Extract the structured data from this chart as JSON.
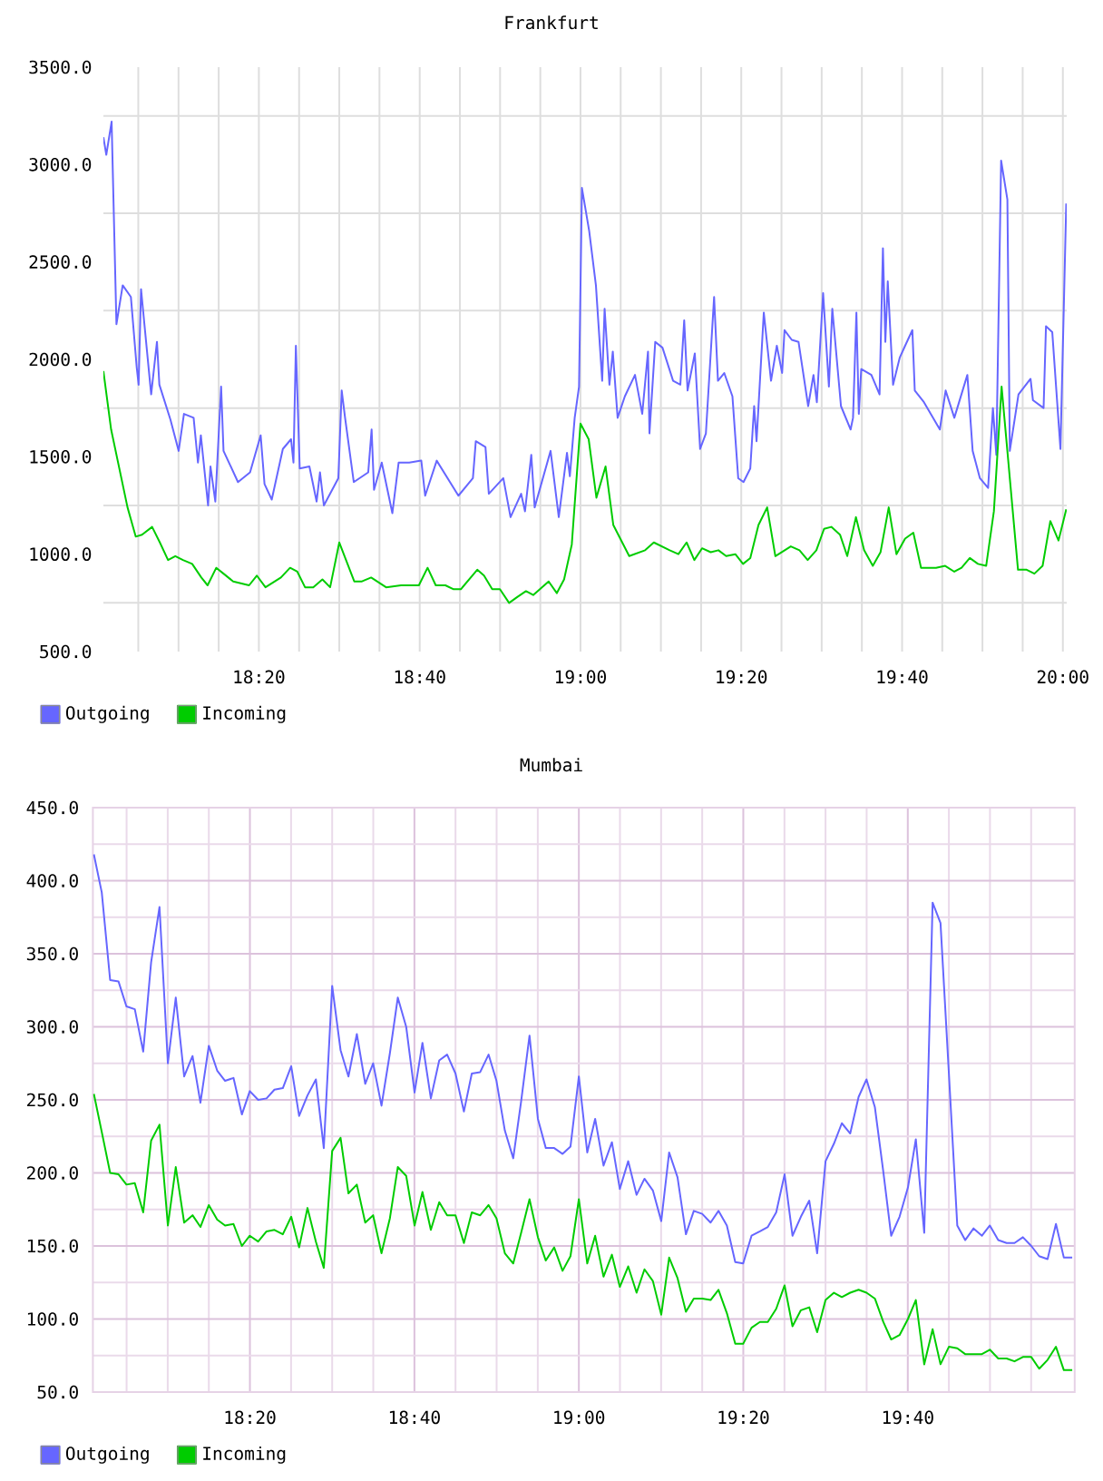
{
  "chart_data": [
    {
      "type": "line",
      "title": "Frankfurt",
      "xlim": [
        18.011,
        20.008
      ],
      "ylim": [
        500,
        3500
      ],
      "xticks": [
        {
          "value": 18.0833,
          "label": null
        },
        {
          "value": 18.1667,
          "label": null
        },
        {
          "value": 18.25,
          "label": null
        },
        {
          "value": 18.3333,
          "label": "18:20"
        },
        {
          "value": 18.4167,
          "label": null
        },
        {
          "value": 18.5,
          "label": null
        },
        {
          "value": 18.5833,
          "label": null
        },
        {
          "value": 18.6667,
          "label": "18:40"
        },
        {
          "value": 18.75,
          "label": null
        },
        {
          "value": 18.8333,
          "label": null
        },
        {
          "value": 18.9167,
          "label": null
        },
        {
          "value": 19.0,
          "label": "19:00"
        },
        {
          "value": 19.0833,
          "label": null
        },
        {
          "value": 19.1667,
          "label": null
        },
        {
          "value": 19.25,
          "label": null
        },
        {
          "value": 19.3333,
          "label": "19:20"
        },
        {
          "value": 19.4167,
          "label": null
        },
        {
          "value": 19.5,
          "label": null
        },
        {
          "value": 19.5833,
          "label": null
        },
        {
          "value": 19.6667,
          "label": "19:40"
        },
        {
          "value": 19.75,
          "label": null
        },
        {
          "value": 19.8333,
          "label": null
        },
        {
          "value": 19.9167,
          "label": null
        },
        {
          "value": 20.0,
          "label": "20:00"
        }
      ],
      "yticks": [
        {
          "value": 500,
          "label": "500.0"
        },
        {
          "value": 750,
          "label": null
        },
        {
          "value": 1000,
          "label": "1000.0"
        },
        {
          "value": 1250,
          "label": null
        },
        {
          "value": 1500,
          "label": "1500.0"
        },
        {
          "value": 1750,
          "label": null
        },
        {
          "value": 2000,
          "label": "2000.0"
        },
        {
          "value": 2250,
          "label": null
        },
        {
          "value": 2500,
          "label": "2500.0"
        },
        {
          "value": 2750,
          "label": null
        },
        {
          "value": 3000,
          "label": "3000.0"
        },
        {
          "value": 3250,
          "label": null
        },
        {
          "value": 3500,
          "label": "3500.0"
        }
      ],
      "grid": true,
      "legend": "bottom left",
      "series": [
        {
          "name": "Outgoing",
          "color": "#6666ff",
          "x": [
            18.011,
            18.017,
            18.028,
            18.038,
            18.051,
            18.068,
            18.08,
            18.084,
            18.089,
            18.11,
            18.122,
            18.127,
            18.15,
            18.167,
            18.178,
            18.198,
            18.207,
            18.213,
            18.228,
            18.233,
            18.243,
            18.255,
            18.26,
            18.29,
            18.315,
            18.337,
            18.345,
            18.36,
            18.383,
            18.4,
            18.405,
            18.41,
            18.418,
            18.438,
            18.453,
            18.46,
            18.468,
            18.498,
            18.505,
            18.512,
            18.53,
            18.56,
            18.567,
            18.572,
            18.588,
            18.61,
            18.623,
            18.645,
            18.67,
            18.678,
            18.702,
            18.732,
            18.747,
            18.777,
            18.783,
            18.803,
            18.81,
            18.84,
            18.855,
            18.877,
            18.885,
            18.898,
            18.905,
            18.938,
            18.955,
            18.972,
            18.978,
            18.988,
            18.997,
            19.003,
            19.018,
            19.032,
            19.045,
            19.05,
            19.06,
            19.067,
            19.077,
            19.092,
            19.113,
            19.128,
            19.14,
            19.143,
            19.155,
            19.17,
            19.192,
            19.207,
            19.215,
            19.222,
            19.237,
            19.248,
            19.26,
            19.277,
            19.285,
            19.298,
            19.315,
            19.327,
            19.338,
            19.352,
            19.36,
            19.365,
            19.38,
            19.395,
            19.407,
            19.418,
            19.423,
            19.438,
            19.452,
            19.472,
            19.483,
            19.49,
            19.503,
            19.515,
            19.522,
            19.54,
            19.56,
            19.565,
            19.572,
            19.577,
            19.582,
            19.603,
            19.62,
            19.627,
            19.632,
            19.637,
            19.648,
            19.662,
            19.673,
            19.688,
            19.693,
            19.712,
            19.745,
            19.757,
            19.775,
            19.802,
            19.813,
            19.828,
            19.845,
            19.855,
            19.862,
            19.872,
            19.885,
            19.89,
            19.908,
            19.933,
            19.938,
            19.96,
            19.965,
            19.978,
            19.995,
            20.007
          ],
          "values": [
            3140,
            3050,
            3220,
            2180,
            2380,
            2320,
            1960,
            1870,
            2360,
            1820,
            2090,
            1870,
            1690,
            1530,
            1720,
            1700,
            1470,
            1610,
            1250,
            1450,
            1270,
            1860,
            1530,
            1370,
            1420,
            1610,
            1360,
            1280,
            1540,
            1590,
            1470,
            2070,
            1440,
            1450,
            1270,
            1420,
            1250,
            1390,
            1840,
            1700,
            1370,
            1420,
            1640,
            1330,
            1470,
            1210,
            1470,
            1470,
            1480,
            1300,
            1480,
            1360,
            1300,
            1390,
            1580,
            1550,
            1310,
            1390,
            1190,
            1310,
            1220,
            1510,
            1240,
            1530,
            1190,
            1520,
            1400,
            1700,
            1860,
            2880,
            2660,
            2380,
            1890,
            2260,
            1870,
            2040,
            1700,
            1810,
            1920,
            1720,
            2040,
            1620,
            2090,
            2060,
            1890,
            1870,
            2200,
            1840,
            2030,
            1540,
            1620,
            2320,
            1890,
            1930,
            1810,
            1390,
            1370,
            1440,
            1760,
            1580,
            2240,
            1890,
            2070,
            1930,
            2150,
            2100,
            2090,
            1760,
            1920,
            1780,
            2340,
            1860,
            2260,
            1760,
            1640,
            1700,
            2240,
            1720,
            1950,
            1920,
            1820,
            2570,
            2090,
            2400,
            1870,
            2010,
            2070,
            2150,
            1840,
            1780,
            1640,
            1840,
            1700,
            1920,
            1530,
            1390,
            1340,
            1750,
            1510,
            3020,
            2820,
            1530,
            1820,
            1900,
            1790,
            1750,
            2170,
            2140,
            1540,
            2800
          ]
        },
        {
          "name": "Incoming",
          "color": "#00cc00",
          "x": [
            18.011,
            18.027,
            18.061,
            18.078,
            18.091,
            18.112,
            18.128,
            18.145,
            18.16,
            18.176,
            18.195,
            18.214,
            18.227,
            18.245,
            18.26,
            18.28,
            18.313,
            18.329,
            18.347,
            18.379,
            18.398,
            18.413,
            18.429,
            18.446,
            18.465,
            18.481,
            18.5,
            18.531,
            18.547,
            18.566,
            18.597,
            18.628,
            18.665,
            18.683,
            18.7,
            18.72,
            18.737,
            18.752,
            18.786,
            18.8,
            18.817,
            18.833,
            18.852,
            18.869,
            18.887,
            18.902,
            18.934,
            18.951,
            18.966,
            18.982,
            19.0,
            19.017,
            19.033,
            19.052,
            19.068,
            19.101,
            19.134,
            19.152,
            19.185,
            19.203,
            19.22,
            19.236,
            19.252,
            19.27,
            19.286,
            19.302,
            19.321,
            19.337,
            19.352,
            19.369,
            19.387,
            19.404,
            19.436,
            19.454,
            19.471,
            19.489,
            19.505,
            19.52,
            19.538,
            19.553,
            19.571,
            19.588,
            19.606,
            19.622,
            19.639,
            19.655,
            19.673,
            19.69,
            19.706,
            19.737,
            19.756,
            19.775,
            19.79,
            19.807,
            19.824,
            19.841,
            19.857,
            19.873,
            19.907,
            19.925,
            19.941,
            19.958,
            19.974,
            19.991,
            20.007
          ],
          "values": [
            1940,
            1640,
            1240,
            1090,
            1100,
            1140,
            1060,
            970,
            990,
            970,
            950,
            880,
            840,
            930,
            900,
            860,
            840,
            890,
            830,
            880,
            930,
            910,
            830,
            830,
            870,
            830,
            1060,
            860,
            860,
            880,
            830,
            840,
            840,
            930,
            840,
            840,
            820,
            820,
            920,
            890,
            820,
            820,
            750,
            780,
            810,
            790,
            860,
            800,
            870,
            1050,
            1670,
            1590,
            1290,
            1450,
            1150,
            990,
            1020,
            1060,
            1020,
            1000,
            1060,
            970,
            1030,
            1010,
            1020,
            990,
            1000,
            950,
            980,
            1150,
            1240,
            990,
            1040,
            1020,
            970,
            1020,
            1130,
            1140,
            1100,
            990,
            1190,
            1020,
            940,
            1010,
            1240,
            1000,
            1080,
            1110,
            930,
            930,
            940,
            910,
            930,
            980,
            950,
            940,
            1220,
            1860,
            920,
            920,
            900,
            940,
            1170,
            1070,
            1230
          ]
        }
      ]
    },
    {
      "type": "line",
      "title": "Mumbai",
      "xlim": [
        18.015,
        20.005
      ],
      "ylim": [
        50,
        450
      ],
      "xticks": [
        {
          "value": 18.0833,
          "label": null
        },
        {
          "value": 18.1667,
          "label": null
        },
        {
          "value": 18.25,
          "label": null
        },
        {
          "value": 18.3333,
          "label": "18:20"
        },
        {
          "value": 18.4167,
          "label": null
        },
        {
          "value": 18.5,
          "label": null
        },
        {
          "value": 18.5833,
          "label": null
        },
        {
          "value": 18.6667,
          "label": "18:40"
        },
        {
          "value": 18.75,
          "label": null
        },
        {
          "value": 18.8333,
          "label": null
        },
        {
          "value": 18.9167,
          "label": null
        },
        {
          "value": 19.0,
          "label": "19:00"
        },
        {
          "value": 19.0833,
          "label": null
        },
        {
          "value": 19.1667,
          "label": null
        },
        {
          "value": 19.25,
          "label": null
        },
        {
          "value": 19.3333,
          "label": "19:20"
        },
        {
          "value": 19.4167,
          "label": null
        },
        {
          "value": 19.5,
          "label": null
        },
        {
          "value": 19.5833,
          "label": null
        },
        {
          "value": 19.6667,
          "label": "19:40"
        },
        {
          "value": 19.75,
          "label": null
        },
        {
          "value": 19.8333,
          "label": null
        },
        {
          "value": 19.9167,
          "label": null
        }
      ],
      "yticks": [
        {
          "value": 50,
          "label": "50.0"
        },
        {
          "value": 75,
          "label": null
        },
        {
          "value": 100,
          "label": "100.0"
        },
        {
          "value": 125,
          "label": null
        },
        {
          "value": 150,
          "label": "150.0"
        },
        {
          "value": 175,
          "label": null
        },
        {
          "value": 200,
          "label": "200.0"
        },
        {
          "value": 225,
          "label": null
        },
        {
          "value": 250,
          "label": "250.0"
        },
        {
          "value": 275,
          "label": null
        },
        {
          "value": 300,
          "label": "300.0"
        },
        {
          "value": 325,
          "label": null
        },
        {
          "value": 350,
          "label": "350.0"
        },
        {
          "value": 375,
          "label": null
        },
        {
          "value": 400,
          "label": "400.0"
        },
        {
          "value": 425,
          "label": null
        },
        {
          "value": 450,
          "label": "450.0"
        }
      ],
      "grid": true,
      "legend": "bottom left",
      "x": [
        18.017,
        18.033,
        18.05,
        18.067,
        18.083,
        18.1,
        18.117,
        18.133,
        18.15,
        18.167,
        18.183,
        18.2,
        18.217,
        18.233,
        18.25,
        18.267,
        18.283,
        18.3,
        18.317,
        18.333,
        18.35,
        18.367,
        18.383,
        18.4,
        18.417,
        18.433,
        18.45,
        18.467,
        18.483,
        18.5,
        18.517,
        18.533,
        18.55,
        18.567,
        18.583,
        18.6,
        18.617,
        18.633,
        18.65,
        18.667,
        18.683,
        18.7,
        18.717,
        18.733,
        18.75,
        18.767,
        18.783,
        18.8,
        18.817,
        18.833,
        18.85,
        18.867,
        18.883,
        18.9,
        18.917,
        18.933,
        18.95,
        18.967,
        18.983,
        19.0,
        19.017,
        19.033,
        19.05,
        19.067,
        19.083,
        19.1,
        19.117,
        19.133,
        19.15,
        19.167,
        19.183,
        19.2,
        19.217,
        19.233,
        19.25,
        19.267,
        19.283,
        19.3,
        19.317,
        19.333,
        19.35,
        19.367,
        19.383,
        19.4,
        19.417,
        19.433,
        19.45,
        19.467,
        19.483,
        19.5,
        19.517,
        19.533,
        19.55,
        19.567,
        19.583,
        19.6,
        19.617,
        19.633,
        19.65,
        19.667,
        19.683,
        19.7,
        19.717,
        19.733,
        19.75,
        19.767,
        19.783,
        19.8,
        19.817,
        19.833,
        19.85,
        19.867,
        19.883,
        19.9,
        19.917,
        19.933,
        19.95,
        19.967,
        19.983,
        20.0
      ],
      "series": [
        {
          "name": "Outgoing",
          "color": "#6666ff",
          "values": [
            418,
            392,
            332,
            331,
            314,
            312,
            283,
            344,
            382,
            275,
            320,
            266,
            280,
            248,
            287,
            270,
            263,
            265,
            240,
            256,
            250,
            251,
            257,
            258,
            273,
            239,
            253,
            264,
            217,
            328,
            284,
            266,
            295,
            261,
            275,
            246,
            282,
            320,
            300,
            255,
            289,
            251,
            277,
            281,
            268,
            242,
            268,
            269,
            281,
            263,
            229,
            210,
            249,
            294,
            237,
            217,
            217,
            213,
            218,
            266,
            214,
            237,
            205,
            221,
            189,
            208,
            185,
            196,
            188,
            167,
            214,
            197,
            158,
            174,
            172,
            166,
            174,
            164,
            139,
            138,
            157,
            160,
            163,
            173,
            199,
            157,
            170,
            181,
            145,
            208,
            220,
            234,
            227,
            252,
            264,
            245,
            201,
            157,
            170,
            190,
            223,
            159,
            385,
            371,
            268,
            164,
            154,
            162,
            157,
            164,
            154,
            152,
            152,
            156,
            150,
            143,
            141,
            165,
            142,
            142
          ]
        },
        {
          "name": "Incoming",
          "color": "#00cc00",
          "values": [
            254,
            228,
            200,
            199,
            192,
            193,
            173,
            222,
            233,
            164,
            204,
            166,
            171,
            163,
            178,
            168,
            164,
            165,
            150,
            157,
            153,
            160,
            161,
            158,
            170,
            149,
            176,
            153,
            135,
            215,
            224,
            186,
            192,
            166,
            171,
            145,
            169,
            204,
            198,
            164,
            187,
            161,
            180,
            171,
            171,
            152,
            173,
            171,
            178,
            169,
            145,
            138,
            159,
            182,
            156,
            140,
            149,
            133,
            143,
            182,
            138,
            157,
            129,
            144,
            122,
            136,
            118,
            134,
            126,
            103,
            142,
            128,
            105,
            114,
            114,
            113,
            120,
            104,
            83,
            83,
            94,
            98,
            98,
            107,
            123,
            95,
            106,
            108,
            91,
            113,
            118,
            115,
            118,
            120,
            118,
            114,
            98,
            86,
            89,
            100,
            113,
            69,
            93,
            69,
            81,
            80,
            76,
            76,
            76,
            79,
            73,
            73,
            71,
            74,
            74,
            66,
            72,
            81,
            65,
            65
          ]
        }
      ]
    }
  ]
}
